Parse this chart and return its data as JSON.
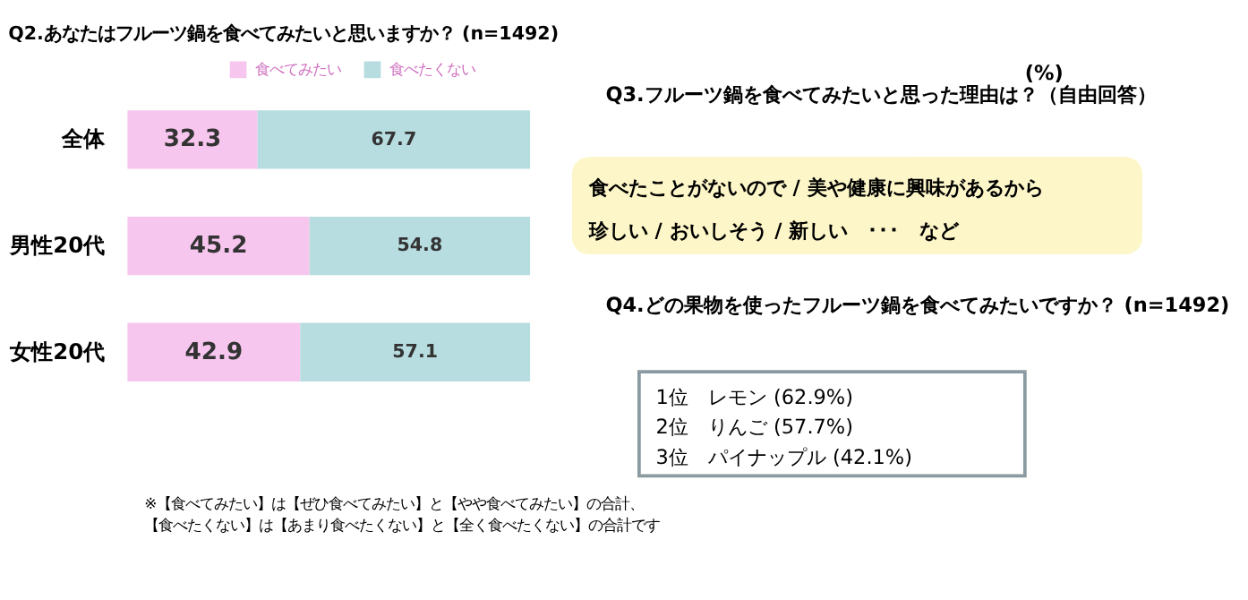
{
  "chart_data": {
    "type": "bar",
    "orientation": "horizontal",
    "stacked": true,
    "title": "Q2.あなたはフルーツ鍋を食べてみたいと思いますか？ (n=1492)",
    "categories": [
      "全体",
      "男性20代",
      "女性20代"
    ],
    "series": [
      {
        "name": "食べてみたい",
        "color": "#f7c6ee",
        "values": [
          32.3,
          45.2,
          42.9
        ]
      },
      {
        "name": "食べたくない",
        "color": "#b7dde0",
        "values": [
          67.7,
          54.8,
          57.1
        ]
      }
    ],
    "xlim": [
      0,
      100
    ],
    "data_labels": true,
    "legend": "top",
    "tick_labels": "y",
    "grid": false,
    "annotations": [
      "(%)",
      "Q3.フルーツ鍋を食べてみたいと思った理由は？（自由回答）",
      "食べたことがないので / 美や健康に興味があるから",
      "珍しい / おいしそう / 新しい　･･･　など",
      "Q4.どの果物を使ったフルーツ鍋を食べてみたいですか？ (n=1492)",
      "1位　レモン (62.9%)",
      "2位　りんご (57.7%)",
      "3位　パイナップル (42.1%)",
      "※【食べてみたい】は【ぜひ食べてみたい】と【やや食べてみたい】の合計、",
      "【食べたくない】は【あまり食べたくない】と【全く食べたくない】の合計です"
    ]
  }
}
